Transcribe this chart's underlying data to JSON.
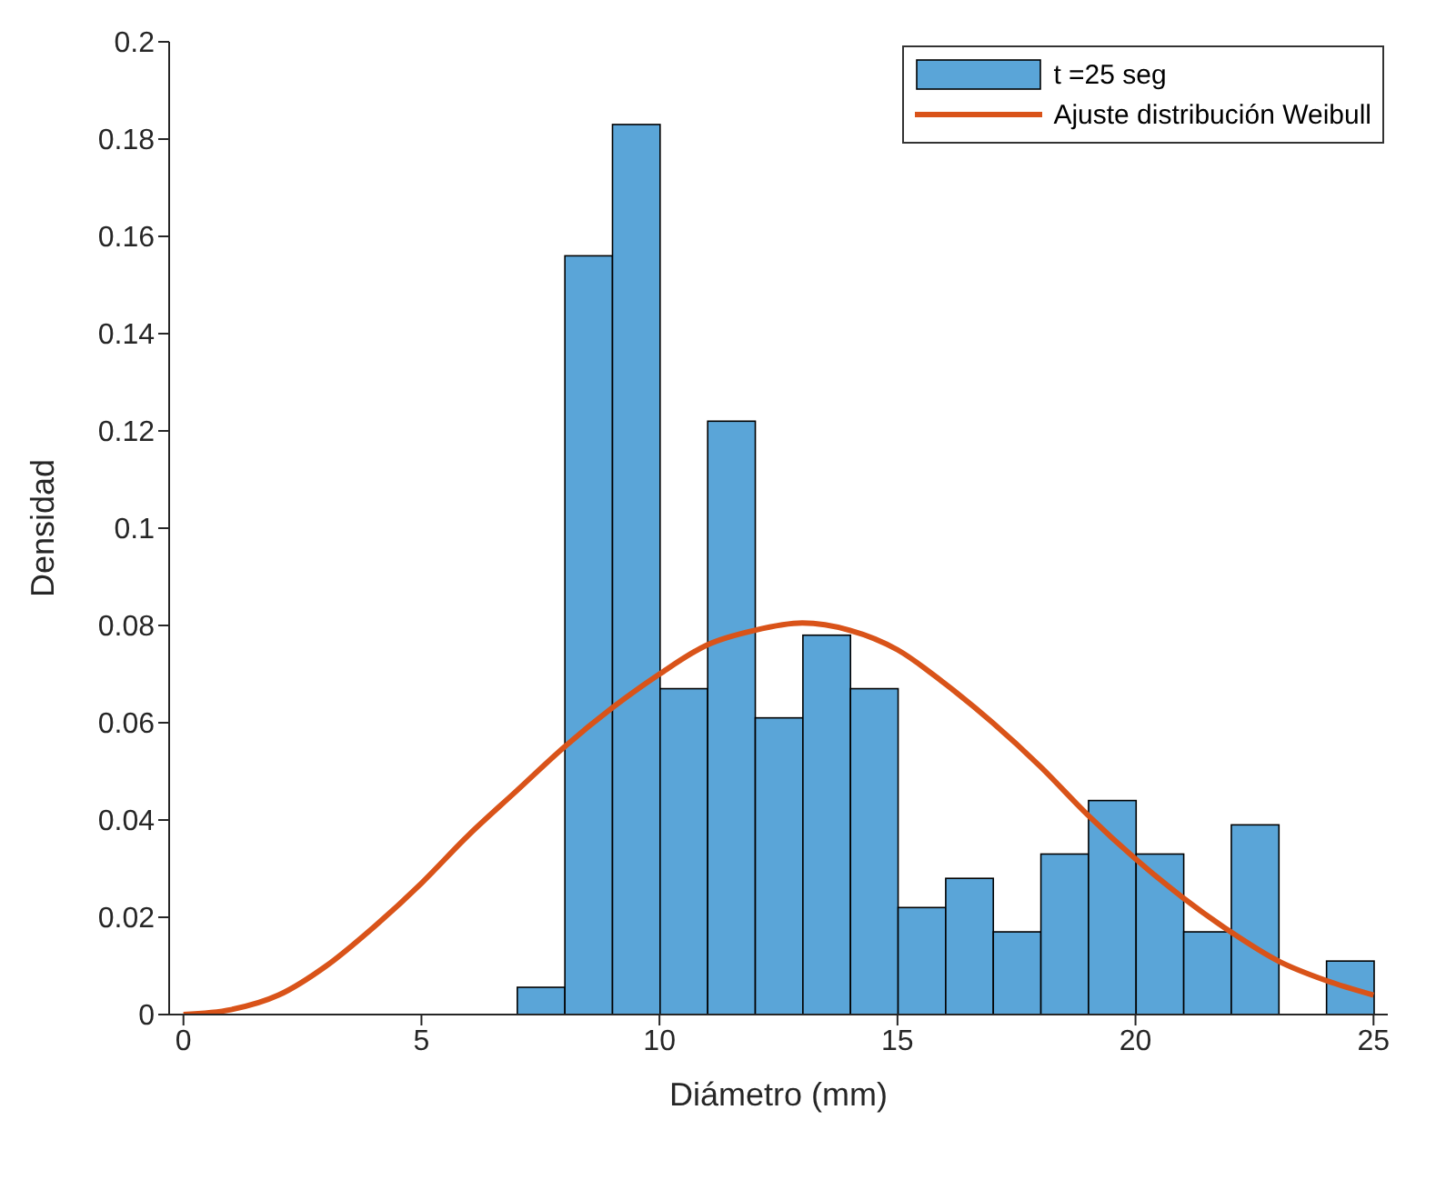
{
  "chart_data": {
    "type": "histogram",
    "xlabel": "Diámetro (mm)",
    "ylabel": "Densidad",
    "xlim": [
      -0.3,
      25.3
    ],
    "xticks": [
      0,
      5,
      10,
      15,
      20,
      25
    ],
    "ylim": [
      0,
      0.2
    ],
    "yticks": [
      0,
      0.02,
      0.04,
      0.06,
      0.08,
      0.1,
      0.12,
      0.14,
      0.16,
      0.18,
      0.2
    ],
    "legend": "top right",
    "series": [
      {
        "name": "t =25 seg",
        "color": "#5aa5d8",
        "bins": [
          7,
          8,
          9,
          10,
          11,
          12,
          13,
          14,
          15,
          16,
          17,
          18,
          19,
          20,
          21,
          22,
          23,
          24,
          25
        ],
        "values": [
          0.0056,
          0.156,
          0.183,
          0.067,
          0.122,
          0.061,
          0.078,
          0.067,
          0.022,
          0.028,
          0.017,
          0.033,
          0.044,
          0.033,
          0.017,
          0.039,
          0,
          0.011
        ]
      },
      {
        "name": "Ajuste distribución Weibull",
        "type": "line",
        "color": "#d95319",
        "x": [
          0,
          1,
          2,
          3,
          4,
          5,
          6,
          7,
          8,
          9,
          10,
          11,
          12,
          13,
          14,
          15,
          16,
          17,
          18,
          19,
          20,
          21,
          22,
          23,
          24,
          25
        ],
        "values": [
          0,
          0.001,
          0.004,
          0.01,
          0.018,
          0.027,
          0.037,
          0.046,
          0.055,
          0.063,
          0.07,
          0.076,
          0.079,
          0.0805,
          0.079,
          0.075,
          0.068,
          0.06,
          0.051,
          0.041,
          0.032,
          0.024,
          0.017,
          0.011,
          0.007,
          0.004
        ]
      }
    ]
  }
}
